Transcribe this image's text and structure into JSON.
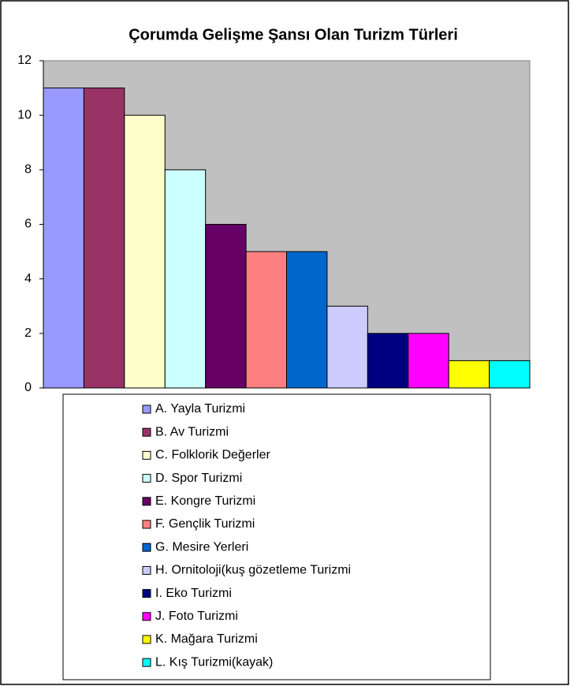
{
  "chart_data": {
    "type": "bar",
    "title": "Çorumda Gelişme Şansı Olan Turizm Türleri",
    "categories": [
      null
    ],
    "series": [
      {
        "name": "A. Yayla Turizmi",
        "color": "#9999ff",
        "values": [
          11
        ]
      },
      {
        "name": "B. Av Turizmi",
        "color": "#993366",
        "values": [
          11
        ]
      },
      {
        "name": "C. Folklorik Değerler",
        "color": "#ffffcc",
        "values": [
          10
        ]
      },
      {
        "name": "D. Spor Turizmi",
        "color": "#ccffff",
        "values": [
          8
        ]
      },
      {
        "name": "E. Kongre Turizmi",
        "color": "#660066",
        "values": [
          6
        ]
      },
      {
        "name": "F. Gençlik Turizmi",
        "color": "#ff8080",
        "values": [
          5
        ]
      },
      {
        "name": "G. Mesire Yerleri",
        "color": "#0066cc",
        "values": [
          5
        ]
      },
      {
        "name": "H. Ornitoloji(kuş gözetleme Turizmi",
        "color": "#ccccff",
        "values": [
          3
        ]
      },
      {
        "name": "I. Eko Turizmi",
        "color": "#000080",
        "values": [
          2
        ]
      },
      {
        "name": "J. Foto Turizmi",
        "color": "#ff00ff",
        "values": [
          2
        ]
      },
      {
        "name": "K. Mağara Turizmi",
        "color": "#ffff00",
        "values": [
          1
        ]
      },
      {
        "name": "L. Kış Turizmi(kayak)",
        "color": "#00ffff",
        "values": [
          1
        ]
      }
    ],
    "ylim": [
      0,
      12
    ],
    "yticks": [
      0,
      2,
      4,
      6,
      8,
      10,
      12
    ],
    "grid": false,
    "plot_background": "#c0c0c0"
  }
}
